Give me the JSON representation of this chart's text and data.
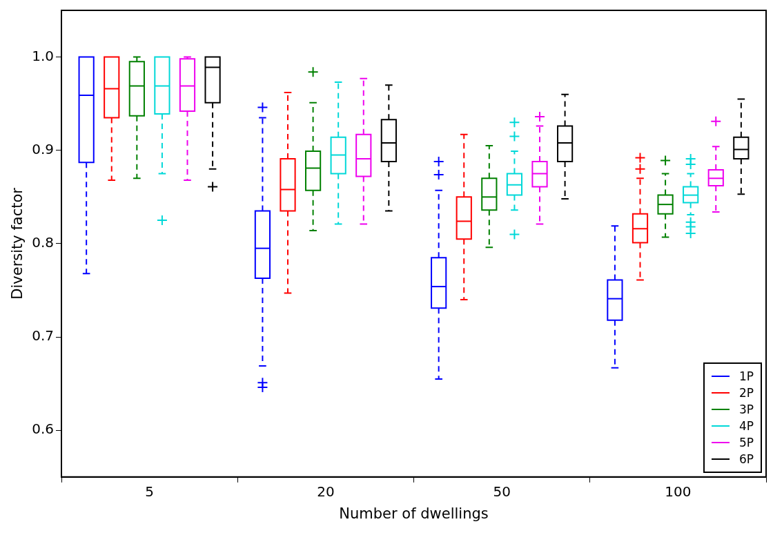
{
  "chart_data": {
    "type": "box",
    "xlabel": "Number of dwellings",
    "ylabel": "Diversity factor",
    "categories": [
      "5",
      "20",
      "50",
      "100"
    ],
    "ylim": [
      0.55,
      1.05
    ],
    "yticks": [
      0.6,
      0.7,
      0.8,
      0.9,
      {
        "value": 1.0,
        "label": "1.0"
      }
    ],
    "grid": false,
    "legend": "bottom right",
    "marker": "cross",
    "line_style": "dashed",
    "series": [
      {
        "name": "1P",
        "color": "#0000ff",
        "boxes": [
          {
            "low": 0.768,
            "q1": 0.887,
            "median": 0.959,
            "q3": 1.0,
            "high": 1.0
          },
          {
            "low": 0.669,
            "q1": 0.763,
            "median": 0.795,
            "q3": 0.835,
            "high": 0.935,
            "outliers": [
              0.946,
              0.651,
              0.646
            ]
          },
          {
            "low": 0.655,
            "q1": 0.731,
            "median": 0.754,
            "q3": 0.785,
            "high": 0.857,
            "outliers": [
              0.888,
              0.874
            ]
          },
          {
            "low": 0.667,
            "q1": 0.718,
            "median": 0.741,
            "q3": 0.761,
            "high": 0.819
          }
        ]
      },
      {
        "name": "2P",
        "color": "#ff0000",
        "boxes": [
          {
            "low": 0.868,
            "q1": 0.935,
            "median": 0.966,
            "q3": 1.0,
            "high": 1.0
          },
          {
            "low": 0.747,
            "q1": 0.835,
            "median": 0.858,
            "q3": 0.891,
            "high": 0.962
          },
          {
            "low": 0.74,
            "q1": 0.805,
            "median": 0.824,
            "q3": 0.85,
            "high": 0.917
          },
          {
            "low": 0.761,
            "q1": 0.801,
            "median": 0.816,
            "q3": 0.832,
            "high": 0.87,
            "outliers": [
              0.892,
              0.88
            ]
          }
        ]
      },
      {
        "name": "3P",
        "color": "#008000",
        "boxes": [
          {
            "low": 0.87,
            "q1": 0.937,
            "median": 0.969,
            "q3": 0.995,
            "high": 1.0
          },
          {
            "low": 0.814,
            "q1": 0.857,
            "median": 0.881,
            "q3": 0.899,
            "high": 0.951,
            "outliers": [
              0.984
            ]
          },
          {
            "low": 0.796,
            "q1": 0.836,
            "median": 0.85,
            "q3": 0.87,
            "high": 0.905
          },
          {
            "low": 0.807,
            "q1": 0.832,
            "median": 0.842,
            "q3": 0.852,
            "high": 0.875,
            "outliers": [
              0.889
            ]
          }
        ]
      },
      {
        "name": "4P",
        "color": "#00d8d8",
        "boxes": [
          {
            "low": 0.875,
            "q1": 0.939,
            "median": 0.969,
            "q3": 1.0,
            "high": 1.0,
            "outliers": [
              0.825
            ]
          },
          {
            "low": 0.821,
            "q1": 0.875,
            "median": 0.895,
            "q3": 0.914,
            "high": 0.973
          },
          {
            "low": 0.836,
            "q1": 0.852,
            "median": 0.863,
            "q3": 0.875,
            "high": 0.899,
            "outliers": [
              0.93,
              0.915,
              0.81
            ]
          },
          {
            "low": 0.831,
            "q1": 0.844,
            "median": 0.852,
            "q3": 0.861,
            "high": 0.875,
            "outliers": [
              0.891,
              0.885,
              0.823,
              0.818,
              0.811
            ]
          }
        ]
      },
      {
        "name": "5P",
        "color": "#ee00ee",
        "boxes": [
          {
            "low": 0.868,
            "q1": 0.942,
            "median": 0.969,
            "q3": 0.998,
            "high": 1.0
          },
          {
            "low": 0.821,
            "q1": 0.872,
            "median": 0.891,
            "q3": 0.917,
            "high": 0.977
          },
          {
            "low": 0.821,
            "q1": 0.861,
            "median": 0.875,
            "q3": 0.888,
            "high": 0.926,
            "outliers": [
              0.936
            ]
          },
          {
            "low": 0.834,
            "q1": 0.862,
            "median": 0.87,
            "q3": 0.879,
            "high": 0.904,
            "outliers": [
              0.931
            ]
          }
        ]
      },
      {
        "name": "6P",
        "color": "#000000",
        "boxes": [
          {
            "low": 0.88,
            "q1": 0.951,
            "median": 0.989,
            "q3": 1.0,
            "high": 1.0,
            "outliers": [
              0.861
            ]
          },
          {
            "low": 0.835,
            "q1": 0.888,
            "median": 0.908,
            "q3": 0.933,
            "high": 0.97
          },
          {
            "low": 0.848,
            "q1": 0.888,
            "median": 0.908,
            "q3": 0.926,
            "high": 0.96
          },
          {
            "low": 0.853,
            "q1": 0.891,
            "median": 0.901,
            "q3": 0.914,
            "high": 0.955
          }
        ]
      }
    ]
  }
}
